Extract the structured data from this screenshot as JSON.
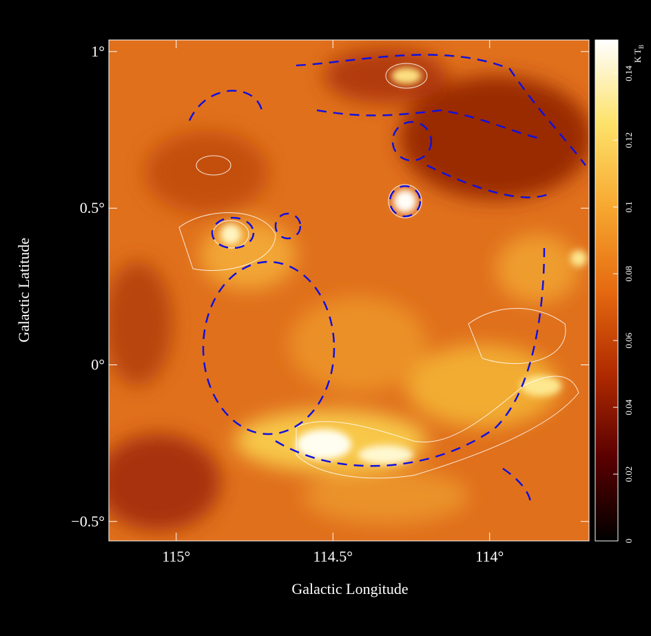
{
  "chart_data": {
    "type": "heatmap",
    "xlabel": "Galactic Longitude",
    "ylabel": "Galactic Latitude",
    "xlim": [
      115.215,
      113.683
    ],
    "ylim": [
      -0.562,
      1.037
    ],
    "xticks": [
      {
        "value": 115,
        "label": "115°"
      },
      {
        "value": 114.5,
        "label": "114.5°"
      },
      {
        "value": 114,
        "label": "114°"
      }
    ],
    "yticks": [
      {
        "value": 1,
        "label": "1°"
      },
      {
        "value": 0.5,
        "label": "0.5°"
      },
      {
        "value": 0,
        "label": "0°"
      },
      {
        "value": -0.5,
        "label": "−0.5°"
      }
    ],
    "colorbar_label": "K T",
    "colorbar_label_sub": "B",
    "clim": [
      0,
      0.15
    ],
    "cticks": [
      0,
      0.02,
      0.04,
      0.06,
      0.08,
      0.1,
      0.12,
      0.14
    ],
    "colormap": [
      "#000000",
      "#5a0000",
      "#b02a00",
      "#e56a10",
      "#f7a830",
      "#fde26a",
      "#ffffff"
    ],
    "grid": false
  }
}
